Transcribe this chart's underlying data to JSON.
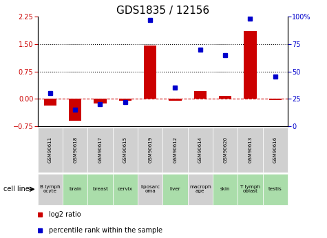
{
  "title": "GDS1835 / 12156",
  "samples": [
    "GSM90611",
    "GSM90618",
    "GSM90617",
    "GSM90615",
    "GSM90619",
    "GSM90612",
    "GSM90614",
    "GSM90620",
    "GSM90613",
    "GSM90616"
  ],
  "cell_lines": [
    "B lymph\nocyte",
    "brain",
    "breast",
    "cervix",
    "liposarc\noma",
    "liver",
    "macroph\nage",
    "skin",
    "T lymph\noblast",
    "testis"
  ],
  "cell_bg": [
    "#d0d0d0",
    "#aaddaa",
    "#aaddaa",
    "#aaddaa",
    "#d0d0d0",
    "#aaddaa",
    "#d0d0d0",
    "#aaddaa",
    "#aaddaa",
    "#aaddaa"
  ],
  "gsm_bg": "#d0d0d0",
  "log2_ratio": [
    -0.18,
    -0.6,
    -0.13,
    -0.05,
    1.45,
    -0.05,
    0.22,
    0.08,
    1.85,
    -0.04
  ],
  "pct_rank": [
    30,
    15,
    20,
    22,
    97,
    35,
    70,
    65,
    98,
    45
  ],
  "ylim_left": [
    -0.75,
    2.25
  ],
  "ylim_right": [
    0,
    100
  ],
  "yticks_left": [
    -0.75,
    0,
    0.75,
    1.5,
    2.25
  ],
  "yticks_right": [
    0,
    25,
    50,
    75,
    100
  ],
  "hlines": [
    0.75,
    1.5
  ],
  "bar_color": "#cc0000",
  "dot_color": "#0000cc",
  "zero_line_color": "#cc0000",
  "bg_color": "#ffffff",
  "title_fontsize": 11,
  "tick_fontsize": 7,
  "legend_fontsize": 7,
  "bar_width": 0.5
}
